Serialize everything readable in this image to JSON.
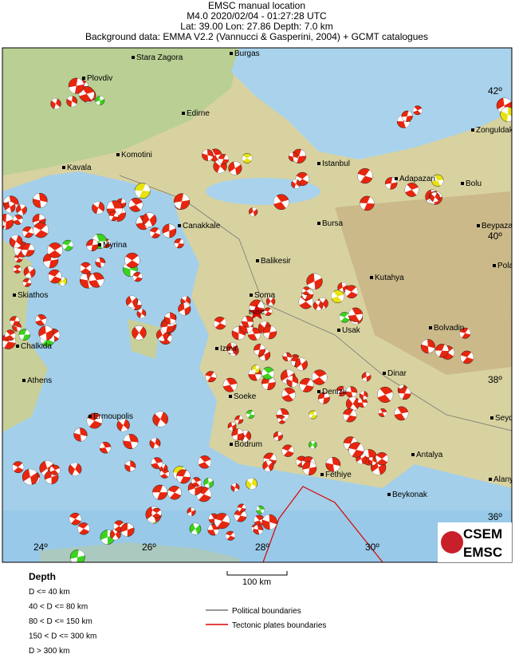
{
  "header": {
    "lines": [
      "EMSC manual location",
      "M4.0  2020/02/04 - 01:27:28 UTC",
      "Lat: 39.00    Lon: 27.86     Depth:  7.0 km",
      "Background data: EMMA V2.2 (Vannucci & Gasperini, 2004) + GCMT catalogues"
    ]
  },
  "map": {
    "places": [
      {
        "label": "Stara Zagora"
      },
      {
        "label": "Burgas"
      },
      {
        "label": "Plovdiv"
      },
      {
        "label": "Edirne"
      },
      {
        "label": "Komotini"
      },
      {
        "label": "Kavala"
      },
      {
        "label": "Istanbul"
      },
      {
        "label": "Adapazari"
      },
      {
        "label": "Bolu"
      },
      {
        "label": "Zonguldak"
      },
      {
        "label": "Canakkale"
      },
      {
        "label": "Bursa"
      },
      {
        "label": "Beypazari"
      },
      {
        "label": "Myrina"
      },
      {
        "label": "Polatli"
      },
      {
        "label": "Balikesir"
      },
      {
        "label": "Kutahya"
      },
      {
        "label": "Skiathos"
      },
      {
        "label": "Soma"
      },
      {
        "label": "Usak"
      },
      {
        "label": "Bolvadin"
      },
      {
        "label": "Chalkida"
      },
      {
        "label": "Izmir"
      },
      {
        "label": "Athens"
      },
      {
        "label": "Dinar"
      },
      {
        "label": "Denizli"
      },
      {
        "label": "Soeke"
      },
      {
        "label": "Seydisehir"
      },
      {
        "label": "Ermoupolis"
      },
      {
        "label": "Bodrum"
      },
      {
        "label": "Antalya"
      },
      {
        "label": "Fethiye"
      },
      {
        "label": "Alanya"
      },
      {
        "label": "Beykonak"
      }
    ],
    "epicenter_label": "EMSC",
    "latitudes": [
      "42º",
      "40º",
      "38º",
      "36º"
    ],
    "longitudes": [
      "24º",
      "26º",
      "28º",
      "30º"
    ]
  },
  "logo": {
    "top": "CSEM",
    "bottom": "EMSC"
  },
  "legend": {
    "title": "Depth",
    "items": [
      "D <= 40 km",
      "40 < D <= 80 km",
      "80 < D <= 150 km",
      "150 < D <= 300 km",
      "D > 300 km"
    ],
    "scale": "100 km",
    "lines": [
      "Political boundaries",
      "Tectonic plates boundaries"
    ]
  }
}
